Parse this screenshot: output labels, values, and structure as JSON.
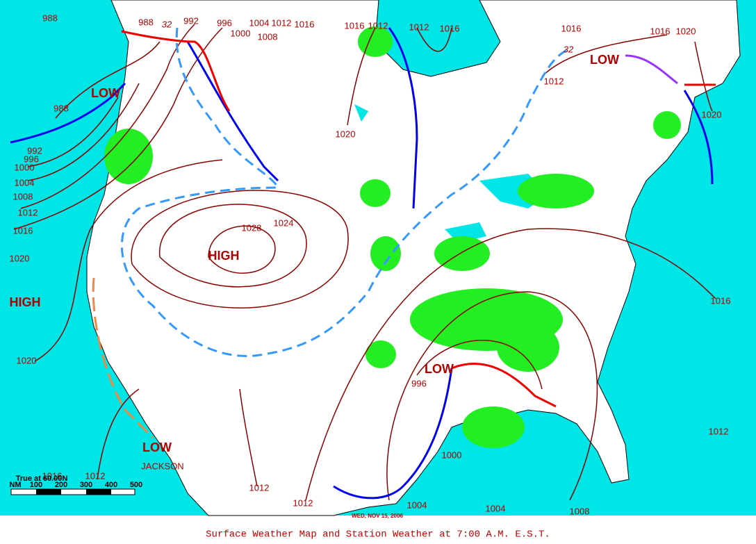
{
  "title": "Surface Weather Map and Station Weather at 7:00 A.M. E.S.T.",
  "date": "WED, NOV 15, 2006",
  "isobar_labels": [
    "988",
    "988",
    "992",
    "996",
    "1000",
    "1004",
    "1008",
    "1012",
    "1016",
    "1016",
    "1012",
    "1012",
    "1016",
    "1016",
    "1016",
    "1020",
    "1012",
    "1020",
    "988",
    "992",
    "996",
    "1000",
    "1004",
    "1008",
    "1012",
    "1016",
    "1020",
    "1020",
    "1020",
    "1028",
    "1024",
    "996",
    "1000",
    "1004",
    "1004",
    "1008",
    "1012",
    "1012",
    "1016",
    "1012",
    "1016",
    "1012"
  ],
  "temperature_labels": [
    "32",
    "32"
  ],
  "pressure_centers": [
    "HIGH",
    "HIGH",
    "LOW",
    "LOW",
    "LOW",
    "LOW"
  ],
  "place": "JACKSON",
  "scale": {
    "title": "True at 60.00N",
    "unit": "NM",
    "ticks": [
      "100",
      "200",
      "300",
      "400",
      "500"
    ]
  }
}
